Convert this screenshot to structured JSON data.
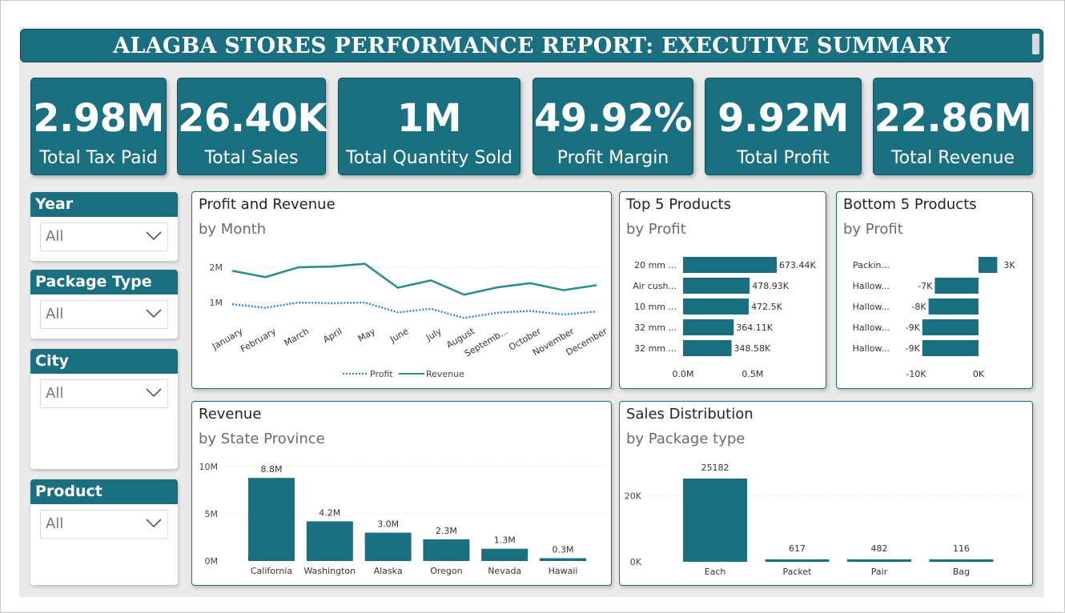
{
  "header": {
    "title": "ALAGBA STORES PERFORMANCE REPORT: EXECUTIVE SUMMARY"
  },
  "kpis": [
    {
      "value": "2.98M",
      "label": "Total Tax Paid"
    },
    {
      "value": "26.40K",
      "label": "Total Sales"
    },
    {
      "value": "1M",
      "label": "Total Quantity Sold"
    },
    {
      "value": "49.92%",
      "label": "Profit Margin"
    },
    {
      "value": "9.92M",
      "label": "Total Profit"
    },
    {
      "value": "22.86M",
      "label": "Total Revenue"
    }
  ],
  "slicers": [
    {
      "title": "Year",
      "value": "All"
    },
    {
      "title": "Package Type",
      "value": "All"
    },
    {
      "title": "City",
      "value": "All"
    },
    {
      "title": "Product",
      "value": "All"
    }
  ],
  "colors": {
    "accent": "#1a7080",
    "profit_line": "#2e86de",
    "revenue_line": "#2a9088"
  },
  "chart_data": [
    {
      "type": "line",
      "title": "Profit and Revenue",
      "subtitle": "by Month",
      "x": [
        "January",
        "February",
        "March",
        "April",
        "May",
        "June",
        "July",
        "August",
        "Septemb...",
        "October",
        "November",
        "December"
      ],
      "y_ticks": [
        "1M",
        "2M"
      ],
      "ylim": [
        0,
        2.6
      ],
      "series": [
        {
          "name": "Profit",
          "values": [
            0.95,
            0.85,
            1.0,
            0.98,
            1.0,
            0.72,
            0.82,
            0.56,
            0.71,
            0.76,
            0.66,
            0.74
          ]
        },
        {
          "name": "Revenue",
          "values": [
            1.9,
            1.72,
            2.0,
            2.02,
            2.1,
            1.42,
            1.63,
            1.22,
            1.43,
            1.55,
            1.35,
            1.49
          ]
        }
      ],
      "legend": "bottom"
    },
    {
      "type": "bar",
      "orientation": "horizontal",
      "title": "Top 5 Products",
      "subtitle": "by Profit",
      "categories": [
        "20 mm ...",
        "Air cush...",
        "10 mm ...",
        "32 mm ...",
        "32 mm ..."
      ],
      "values": [
        673440,
        478930,
        472500,
        364110,
        348580
      ],
      "data_labels": [
        "673.44K",
        "478.93K",
        "472.5K",
        "364.11K",
        "348.58K"
      ],
      "x_ticks": [
        "0.0M",
        "0.5M"
      ],
      "xlim": [
        0,
        700000
      ]
    },
    {
      "type": "bar",
      "orientation": "horizontal",
      "title": "Bottom 5 Products",
      "subtitle": "by Profit",
      "categories": [
        "Packin...",
        "Hallow...",
        "Hallow...",
        "Hallow...",
        "Hallow..."
      ],
      "values": [
        3000,
        -7000,
        -8000,
        -9000,
        -9000
      ],
      "data_labels": [
        "3K",
        "-7K",
        "-8K",
        "-9K",
        "-9K"
      ],
      "x_ticks": [
        "-10K",
        "0K"
      ],
      "xlim": [
        -10000,
        4000
      ]
    },
    {
      "type": "bar",
      "title": "Revenue",
      "subtitle": "by State Province",
      "categories": [
        "California",
        "Washington",
        "Alaska",
        "Oregon",
        "Nevada",
        "Hawaii"
      ],
      "values": [
        8.8,
        4.2,
        3.0,
        2.3,
        1.3,
        0.3
      ],
      "data_labels": [
        "8.8M",
        "4.2M",
        "3.0M",
        "2.3M",
        "1.3M",
        "0.3M"
      ],
      "y_ticks": [
        "0M",
        "5M",
        "10M"
      ],
      "ylim": [
        0,
        10
      ]
    },
    {
      "type": "bar",
      "title": "Sales Distribution",
      "subtitle": "by Package type",
      "categories": [
        "Each",
        "Packet",
        "Pair",
        "Bag"
      ],
      "values": [
        25182,
        617,
        482,
        116
      ],
      "data_labels": [
        "25182",
        "617",
        "482",
        "116"
      ],
      "y_ticks": [
        "0K",
        "20K"
      ],
      "ylim": [
        0,
        25182
      ]
    }
  ]
}
